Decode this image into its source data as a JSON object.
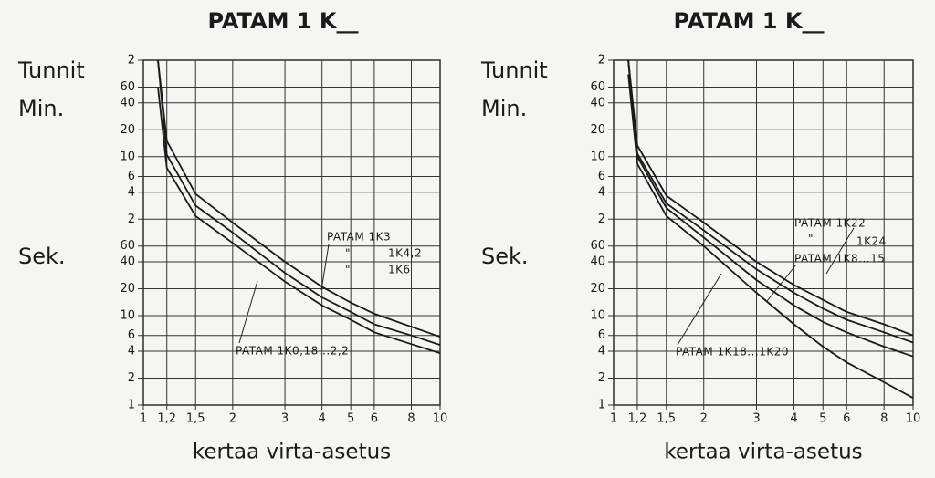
{
  "chart_data": [
    {
      "type": "line",
      "title": "PATAM 1 K__",
      "x_label": "kertaa virta-asetus",
      "unit_labels": [
        "Tunnit",
        "Min.",
        "Sek."
      ],
      "log_x": true,
      "log_y": true,
      "grid": true,
      "color": "#1a1a1a",
      "xlim": [
        1,
        10
      ],
      "xticks": [
        1,
        {
          "value": 1.2,
          "label": "1,2"
        },
        {
          "value": 1.5,
          "label": "1,5"
        },
        2,
        3,
        4,
        5,
        6,
        8,
        10
      ],
      "ylim": [
        1,
        7200
      ],
      "yticks": [
        1,
        2,
        4,
        6,
        10,
        20,
        40,
        60,
        {
          "value": 120,
          "label": "2"
        },
        {
          "value": 240,
          "label": "4"
        },
        {
          "value": 360,
          "label": "6"
        },
        {
          "value": 600,
          "label": "10"
        },
        {
          "value": 1200,
          "label": "20"
        },
        {
          "value": 2400,
          "label": "40"
        },
        {
          "value": 3600,
          "label": "60"
        },
        {
          "value": 7200,
          "label": "2"
        }
      ],
      "x": [
        1.12,
        1.2,
        1.5,
        2,
        3,
        4,
        5,
        6,
        8,
        10
      ],
      "series": [
        {
          "name": "PATAM 1K3",
          "values": [
            7200,
            900,
            230,
            110,
            40,
            21,
            14,
            10.5,
            7.5,
            5.8
          ]
        },
        {
          "name": "1K4,2",
          "values": [
            7200,
            630,
            170,
            85,
            30,
            16,
            11,
            8,
            6,
            4.7
          ]
        },
        {
          "name": "1K6",
          "values": [
            3600,
            450,
            130,
            65,
            24,
            13,
            9,
            6.5,
            4.8,
            3.8
          ]
        }
      ],
      "annotations": [
        "\"",
        "\"",
        "PATAM 1K0,18...2,2"
      ]
    },
    {
      "type": "line",
      "title": "PATAM 1 K__",
      "x_label": "kertaa virta-asetus",
      "unit_labels": [
        "Tunnit",
        "Min.",
        "Sek."
      ],
      "log_x": true,
      "log_y": true,
      "grid": true,
      "color": "#1a1a1a",
      "xlim": [
        1,
        10
      ],
      "xticks": [
        1,
        {
          "value": 1.2,
          "label": "1,2"
        },
        {
          "value": 1.5,
          "label": "1,5"
        },
        2,
        3,
        4,
        5,
        6,
        8,
        10
      ],
      "ylim": [
        1,
        7200
      ],
      "yticks": [
        1,
        2,
        4,
        6,
        10,
        20,
        40,
        60,
        {
          "value": 120,
          "label": "2"
        },
        {
          "value": 240,
          "label": "4"
        },
        {
          "value": 360,
          "label": "6"
        },
        {
          "value": 600,
          "label": "10"
        },
        {
          "value": 1200,
          "label": "20"
        },
        {
          "value": 2400,
          "label": "40"
        },
        {
          "value": 3600,
          "label": "60"
        },
        {
          "value": 7200,
          "label": "2"
        }
      ],
      "x": [
        1.12,
        1.2,
        1.5,
        2,
        3,
        4,
        5,
        6,
        8,
        10
      ],
      "series": [
        {
          "name": "PATAM 1K22",
          "values": [
            7200,
            800,
            220,
            110,
            40,
            22,
            15,
            11,
            8,
            6
          ]
        },
        {
          "name": "1K24",
          "values": [
            7200,
            650,
            180,
            90,
            33,
            18,
            12,
            9,
            6.5,
            5
          ]
        },
        {
          "name": "PATAM 1K8...15",
          "values": [
            7200,
            600,
            160,
            75,
            25,
            13,
            8.5,
            6.5,
            4.5,
            3.5
          ]
        },
        {
          "name": "PATAM 1K18...1K20",
          "values": [
            5000,
            500,
            130,
            60,
            18,
            8,
            4.5,
            3,
            1.8,
            1.2
          ]
        }
      ],
      "annotations": [
        "\""
      ]
    }
  ]
}
